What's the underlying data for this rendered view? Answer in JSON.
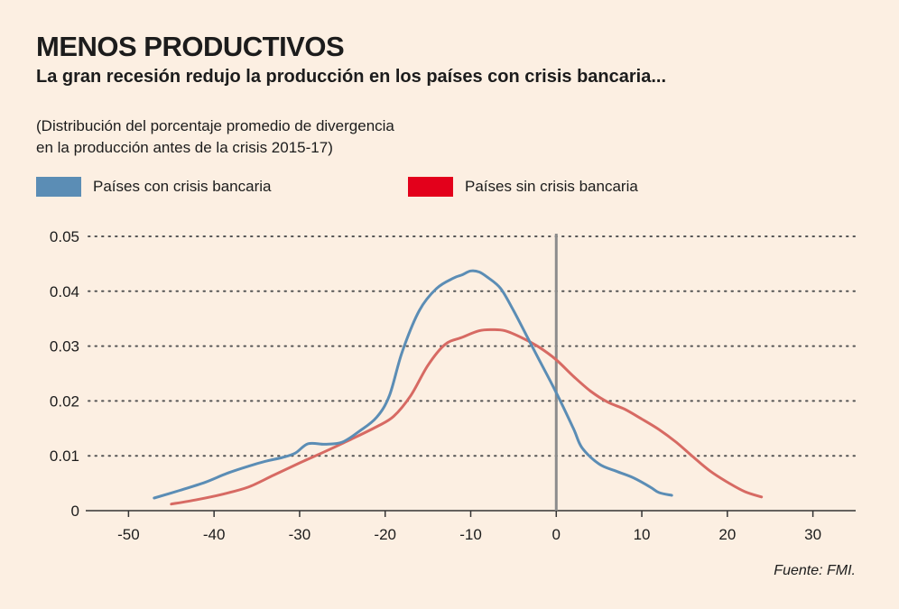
{
  "header": {
    "title": "MENOS PRODUCTIVOS",
    "subtitle": "La gran recesión redujo la producción en los países con crisis bancaria...",
    "note_line1": "(Distribución del porcentaje promedio de divergencia",
    "note_line2": "en la producción antes de la crisis 2015-17)"
  },
  "source": "Fuente: FMI.",
  "colors": {
    "background": "#fcefe2",
    "series_with_crisis": "#5b8db5",
    "series_without_crisis": "#d76a63",
    "legend_without_crisis": "#e3001b",
    "zero_line": "#8c8c8c",
    "grid": "#555555"
  },
  "chart_data": {
    "type": "line",
    "title": "MENOS PRODUCTIVOS",
    "xlim": [
      -55,
      35
    ],
    "ylim": [
      0,
      0.05
    ],
    "x_ticks": [
      -50,
      -40,
      -30,
      -20,
      -10,
      0,
      10,
      20,
      30
    ],
    "x_tick_labels": [
      "-50",
      "-40",
      "-30",
      "-20",
      "-10",
      "0",
      "10",
      "20",
      "30"
    ],
    "y_ticks": [
      0,
      0.01,
      0.02,
      0.03,
      0.04,
      0.05
    ],
    "y_tick_labels": [
      "0",
      "0.01",
      "0.02",
      "0.03",
      "0.04",
      "0.05"
    ],
    "grid": "horizontal dotted",
    "reference_line_x": 0,
    "legend_placement": "top",
    "series": [
      {
        "name": "Países con crisis bancaria",
        "color": "#5b8db5",
        "x": [
          -47,
          -44,
          -41,
          -38.5,
          -36,
          -34,
          -32,
          -30.5,
          -29,
          -27,
          -25,
          -23,
          -21,
          -19.5,
          -18,
          -16,
          -14,
          -12,
          -11,
          -10,
          -9,
          -8,
          -6.5,
          -5,
          -3.5,
          -2,
          0,
          2,
          3,
          5,
          7,
          9,
          11,
          12,
          13.5
        ],
        "y": [
          0.0023,
          0.0037,
          0.0052,
          0.0068,
          0.0081,
          0.009,
          0.0097,
          0.0105,
          0.0122,
          0.0121,
          0.0125,
          0.0145,
          0.017,
          0.021,
          0.029,
          0.0365,
          0.0405,
          0.0424,
          0.043,
          0.0437,
          0.0435,
          0.0425,
          0.0405,
          0.0365,
          0.032,
          0.0275,
          0.0215,
          0.015,
          0.0115,
          0.0085,
          0.0072,
          0.006,
          0.0043,
          0.0033,
          0.0028
        ]
      },
      {
        "name": "Países sin crisis bancaria",
        "color": "#d76a63",
        "x": [
          -45,
          -42,
          -39,
          -36,
          -33,
          -30,
          -27,
          -24,
          -21,
          -19,
          -17,
          -15,
          -13,
          -11,
          -9,
          -7.5,
          -6,
          -4,
          -2,
          0,
          2,
          4,
          6,
          8,
          10,
          12,
          14,
          16,
          18,
          20,
          22,
          24
        ],
        "y": [
          0.0012,
          0.002,
          0.003,
          0.0043,
          0.0065,
          0.0087,
          0.0108,
          0.013,
          0.0153,
          0.0172,
          0.021,
          0.0265,
          0.0303,
          0.0316,
          0.0328,
          0.033,
          0.0328,
          0.0315,
          0.0298,
          0.0275,
          0.0245,
          0.0218,
          0.0198,
          0.0185,
          0.0167,
          0.0148,
          0.0125,
          0.0098,
          0.0072,
          0.0052,
          0.0035,
          0.0025
        ]
      }
    ]
  }
}
